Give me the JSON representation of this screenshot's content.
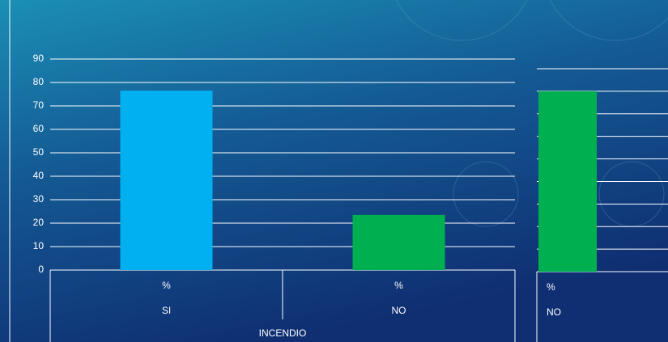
{
  "chart_data": [
    {
      "type": "bar",
      "categories": [
        "SI",
        "NO"
      ],
      "category_units": [
        "%",
        "%"
      ],
      "group": "INCENDIO",
      "values": [
        76.5,
        23.5
      ],
      "colors": [
        "#00b0f0",
        "#00b050"
      ],
      "ylim": [
        0,
        90
      ],
      "yticks": [
        0,
        10,
        20,
        30,
        40,
        50,
        60,
        70,
        80,
        90
      ],
      "grid": true,
      "tick_labels": true
    },
    {
      "type": "bar",
      "categories": [
        "NO"
      ],
      "category_units": [
        "%"
      ],
      "values": [
        80
      ],
      "colors": [
        "#00b050"
      ],
      "ylim": [
        0,
        90
      ],
      "yticks": [
        0,
        10,
        20,
        30,
        40,
        50,
        60,
        70,
        80,
        90
      ],
      "grid": true,
      "tick_labels": false
    }
  ]
}
